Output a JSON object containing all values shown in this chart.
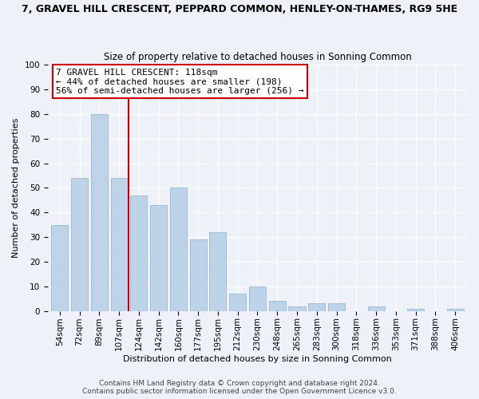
{
  "title": "7, GRAVEL HILL CRESCENT, PEPPARD COMMON, HENLEY-ON-THAMES, RG9 5HE",
  "subtitle": "Size of property relative to detached houses in Sonning Common",
  "xlabel": "Distribution of detached houses by size in Sonning Common",
  "ylabel": "Number of detached properties",
  "categories": [
    "54sqm",
    "72sqm",
    "89sqm",
    "107sqm",
    "124sqm",
    "142sqm",
    "160sqm",
    "177sqm",
    "195sqm",
    "212sqm",
    "230sqm",
    "248sqm",
    "265sqm",
    "283sqm",
    "300sqm",
    "318sqm",
    "336sqm",
    "353sqm",
    "371sqm",
    "388sqm",
    "406sqm"
  ],
  "values": [
    35,
    54,
    80,
    54,
    47,
    43,
    50,
    29,
    32,
    7,
    10,
    4,
    2,
    3,
    3,
    0,
    2,
    0,
    1,
    0,
    1
  ],
  "bar_color": "#bdd4e8",
  "bar_edge_color": "#9ab8d4",
  "vline_x_index": 3.5,
  "vline_color": "#cc0000",
  "ylim": [
    0,
    100
  ],
  "annotation_title": "7 GRAVEL HILL CRESCENT: 118sqm",
  "annotation_line1": "← 44% of detached houses are smaller (198)",
  "annotation_line2": "56% of semi-detached houses are larger (256) →",
  "annotation_box_color": "#ffffff",
  "annotation_box_edge": "#cc0000",
  "footer_line1": "Contains HM Land Registry data © Crown copyright and database right 2024.",
  "footer_line2": "Contains public sector information licensed under the Open Government Licence v3.0.",
  "background_color": "#eef2f8",
  "grid_color": "#ffffff",
  "title_fontsize": 9,
  "subtitle_fontsize": 8.5,
  "ylabel_fontsize": 8,
  "xlabel_fontsize": 8,
  "tick_fontsize": 7.5,
  "annotation_fontsize": 8,
  "footer_fontsize": 6.5
}
